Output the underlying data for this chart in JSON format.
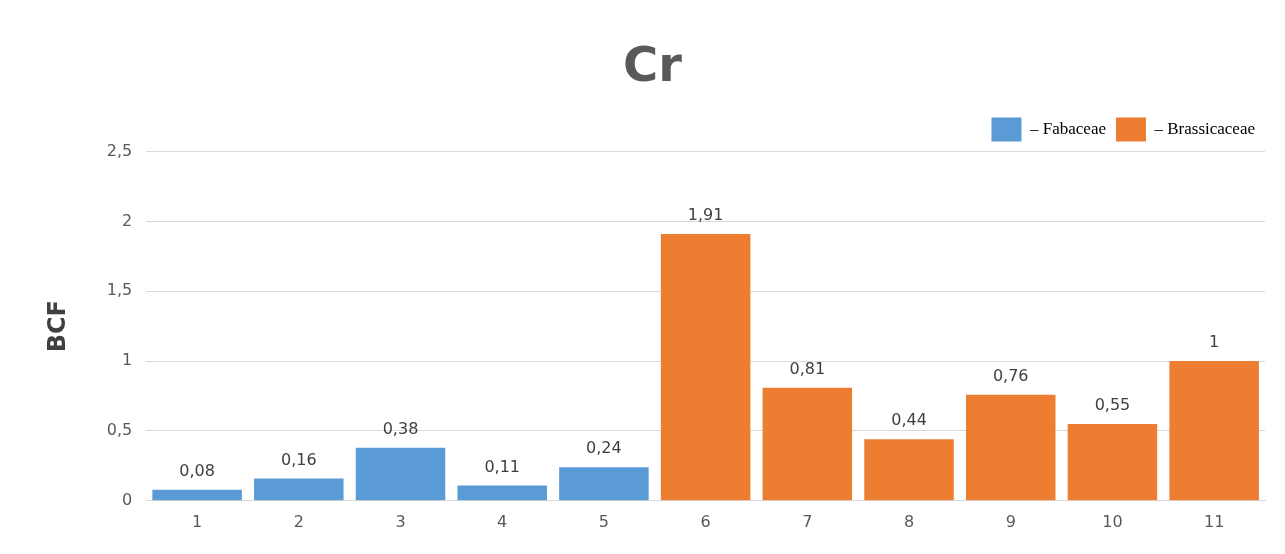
{
  "chart_data": {
    "type": "bar",
    "title": "Cr",
    "ylabel": "BCF",
    "categories": [
      "1",
      "2",
      "3",
      "4",
      "5",
      "6",
      "7",
      "8",
      "9",
      "10",
      "11"
    ],
    "series": [
      {
        "name": "– Fabaceae",
        "color": "#5b9bd5",
        "values": [
          0.08,
          0.16,
          0.38,
          0.11,
          0.24,
          null,
          null,
          null,
          null,
          null,
          null
        ],
        "value_labels": [
          "0,08",
          "0,16",
          "0,38",
          "0,11",
          "0,24",
          null,
          null,
          null,
          null,
          null,
          null
        ]
      },
      {
        "name": "– Brassicaceae",
        "color": "#ed7d31",
        "values": [
          null,
          null,
          null,
          null,
          null,
          1.91,
          0.81,
          0.44,
          0.76,
          0.55,
          1
        ],
        "value_labels": [
          null,
          null,
          null,
          null,
          null,
          "1,91",
          "0,81",
          "0,44",
          "0,76",
          "0,55",
          "1"
        ]
      }
    ],
    "ylim": [
      0,
      2.5
    ],
    "yticks": [
      0,
      {
        "value": 0.5,
        "label": "0,5"
      },
      1,
      {
        "value": 1.5,
        "label": "1,5"
      },
      2,
      {
        "value": 2.5,
        "label": "2,5"
      }
    ],
    "grid": "y",
    "legend": "top right"
  }
}
